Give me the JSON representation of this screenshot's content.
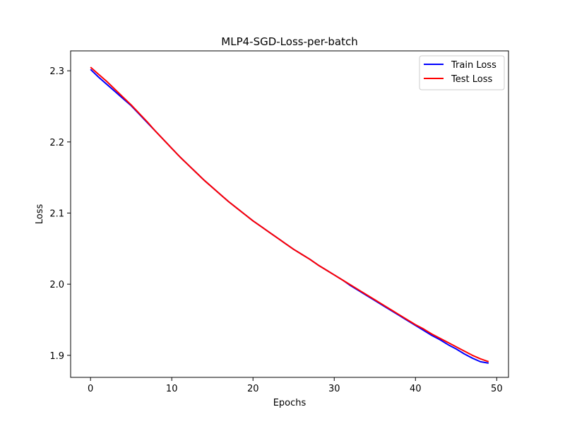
{
  "chart_data": {
    "type": "line",
    "title": "MLP4-SGD-Loss-per-batch",
    "xlabel": "Epochs",
    "ylabel": "Loss",
    "xlim": [
      -2.45,
      51.45
    ],
    "ylim": [
      1.869,
      2.328
    ],
    "xticks": [
      0,
      10,
      20,
      30,
      40,
      50
    ],
    "yticks": [
      1.9,
      2.0,
      2.1,
      2.2,
      2.3
    ],
    "xtick_labels": [
      "0",
      "10",
      "20",
      "30",
      "40",
      "50"
    ],
    "ytick_labels": [
      "1.9",
      "2.0",
      "2.1",
      "2.2",
      "2.3"
    ],
    "grid": false,
    "legend_position": "top-right",
    "x": [
      0,
      1,
      2,
      3,
      4,
      5,
      6,
      7,
      8,
      9,
      10,
      11,
      12,
      13,
      14,
      15,
      16,
      17,
      18,
      19,
      20,
      21,
      22,
      23,
      24,
      25,
      26,
      27,
      28,
      29,
      30,
      31,
      32,
      33,
      34,
      35,
      36,
      37,
      38,
      39,
      40,
      41,
      42,
      43,
      44,
      45,
      46,
      47,
      48,
      49
    ],
    "series": [
      {
        "name": "Train Loss",
        "color": "#0000ff",
        "values": [
          2.302,
          2.291,
          2.281,
          2.271,
          2.261,
          2.251,
          2.239,
          2.227,
          2.215,
          2.203,
          2.191,
          2.179,
          2.168,
          2.157,
          2.146,
          2.136,
          2.126,
          2.116,
          2.107,
          2.098,
          2.089,
          2.081,
          2.073,
          2.065,
          2.057,
          2.049,
          2.042,
          2.035,
          2.027,
          2.02,
          2.013,
          2.006,
          1.998,
          1.991,
          1.984,
          1.977,
          1.97,
          1.963,
          1.956,
          1.949,
          1.942,
          1.935,
          1.928,
          1.922,
          1.915,
          1.909,
          1.902,
          1.896,
          1.891,
          1.889
        ]
      },
      {
        "name": "Test Loss",
        "color": "#ff0000",
        "values": [
          2.305,
          2.295,
          2.285,
          2.274,
          2.263,
          2.252,
          2.24,
          2.228,
          2.215,
          2.203,
          2.191,
          2.179,
          2.168,
          2.157,
          2.146,
          2.136,
          2.126,
          2.116,
          2.107,
          2.098,
          2.089,
          2.081,
          2.073,
          2.065,
          2.057,
          2.049,
          2.042,
          2.035,
          2.027,
          2.02,
          2.013,
          2.006,
          1.999,
          1.992,
          1.985,
          1.978,
          1.971,
          1.964,
          1.957,
          1.95,
          1.943,
          1.937,
          1.93,
          1.924,
          1.918,
          1.912,
          1.906,
          1.9,
          1.895,
          1.891
        ]
      }
    ]
  }
}
